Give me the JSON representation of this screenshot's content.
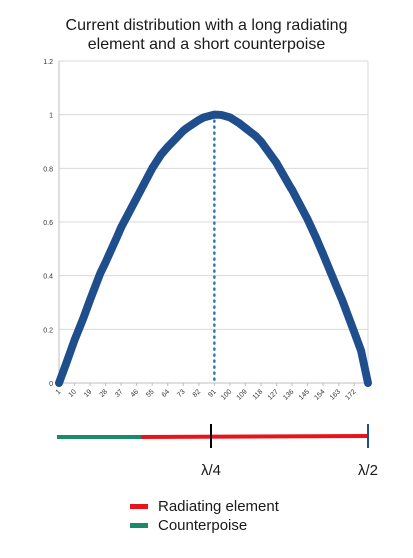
{
  "chart_data": {
    "type": "scatter",
    "title_lines": [
      "Current distribution with a long radiating",
      "element and a short counterpoise"
    ],
    "xlabel": "",
    "ylabel": "",
    "xlim": [
      1,
      180
    ],
    "ylim": [
      0,
      1.2
    ],
    "x_tick_labels": [
      "1",
      "10",
      "19",
      "28",
      "37",
      "46",
      "55",
      "64",
      "73",
      "82",
      "91",
      "100",
      "109",
      "118",
      "127",
      "136",
      "145",
      "154",
      "163",
      "172"
    ],
    "y_tick_labels": [
      "0",
      "0.2",
      "0.4",
      "0.6",
      "0.8",
      "1",
      "1.2"
    ],
    "series": [
      {
        "color": "#1f4e8c",
        "x": [
          1,
          5,
          10,
          15,
          19,
          25,
          28,
          35,
          37,
          46,
          55,
          60,
          64,
          73,
          75,
          82,
          85,
          91,
          95,
          100,
          105,
          109,
          115,
          118,
          127,
          135,
          136,
          145,
          150,
          154,
          163,
          165,
          172,
          176,
          180
        ],
        "y": [
          0.0,
          0.07,
          0.16,
          0.24,
          0.31,
          0.41,
          0.45,
          0.55,
          0.58,
          0.69,
          0.8,
          0.85,
          0.88,
          0.94,
          0.95,
          0.98,
          0.99,
          1.0,
          0.999,
          0.99,
          0.97,
          0.95,
          0.92,
          0.9,
          0.82,
          0.73,
          0.72,
          0.61,
          0.54,
          0.48,
          0.34,
          0.31,
          0.19,
          0.12,
          0.0
        ]
      }
    ],
    "peak_marker": {
      "x": 91,
      "style": "dotted",
      "color": "#2e75b6"
    },
    "grid": "horizontal",
    "legend": [
      {
        "label": "Radiating element",
        "color": "#e8141c"
      },
      {
        "label": "Counterpoise",
        "color": "#1a8a6a"
      }
    ],
    "legend_position": "bottom"
  },
  "antenna": {
    "labels": [
      "λ/4",
      "λ/2"
    ],
    "counterpoise_color": "#1a8a6a",
    "radiating_color": "#e8141c",
    "marker_color_quarter": "#000000",
    "marker_color_half": "#1f4e8c"
  }
}
